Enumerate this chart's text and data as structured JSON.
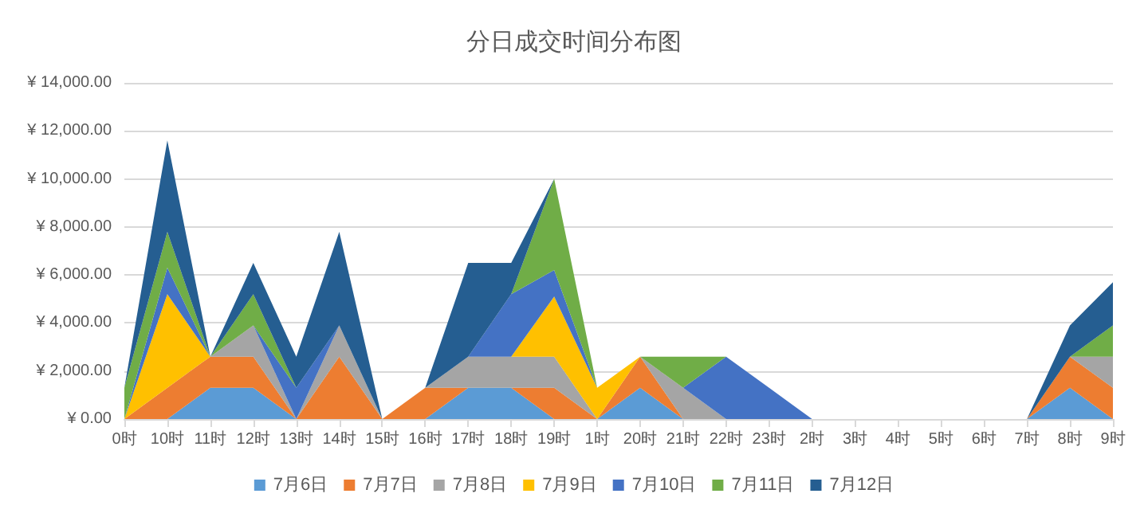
{
  "chart_data": {
    "type": "area",
    "title": "分日成交时间分布图",
    "stacked": true,
    "grid": "y",
    "legend": "bottom",
    "marker": "none",
    "categories": [
      "0时",
      "10时",
      "11时",
      "12时",
      "13时",
      "14时",
      "15时",
      "16时",
      "17时",
      "18时",
      "19时",
      "1时",
      "20时",
      "21时",
      "22时",
      "23时",
      "2时",
      "3时",
      "4时",
      "5时",
      "6时",
      "7时",
      "8时",
      "9时"
    ],
    "ylim": [
      0,
      14000
    ],
    "yticks": [
      {
        "value": 0,
        "label": "¥ 0.00"
      },
      {
        "value": 2000,
        "label": "¥ 2,000.00"
      },
      {
        "value": 4000,
        "label": "¥ 4,000.00"
      },
      {
        "value": 6000,
        "label": "¥ 6,000.00"
      },
      {
        "value": 8000,
        "label": "¥ 8,000.00"
      },
      {
        "value": 10000,
        "label": "¥ 10,000.00"
      },
      {
        "value": 12000,
        "label": "¥ 12,000.00"
      },
      {
        "value": 14000,
        "label": "¥ 14,000.00"
      }
    ],
    "series": [
      {
        "name": "7月6日",
        "color": "#5b9bd5",
        "values": [
          0,
          0,
          1300,
          1300,
          0,
          0,
          0,
          0,
          1300,
          1300,
          0,
          0,
          1300,
          0,
          0,
          0,
          0,
          0,
          0,
          0,
          0,
          0,
          1300,
          0
        ]
      },
      {
        "name": "7月7日",
        "color": "#ed7d31",
        "values": [
          0,
          1300,
          1300,
          1300,
          0,
          2600,
          0,
          1300,
          0,
          0,
          1300,
          0,
          1300,
          0,
          0,
          0,
          0,
          0,
          0,
          0,
          0,
          0,
          1300,
          1300
        ]
      },
      {
        "name": "7月8日",
        "color": "#a5a5a5",
        "values": [
          0,
          0,
          0,
          1300,
          0,
          1300,
          0,
          0,
          1300,
          1300,
          1300,
          0,
          0,
          1300,
          0,
          0,
          0,
          0,
          0,
          0,
          0,
          0,
          0,
          1300
        ]
      },
      {
        "name": "7月9日",
        "color": "#ffc000",
        "values": [
          0,
          3900,
          0,
          0,
          0,
          0,
          0,
          0,
          0,
          0,
          2500,
          1300,
          0,
          0,
          0,
          0,
          0,
          0,
          0,
          0,
          0,
          0,
          0,
          0
        ]
      },
      {
        "name": "7月10日",
        "color": "#4472c4",
        "values": [
          0,
          1100,
          0,
          0,
          1300,
          0,
          0,
          0,
          0,
          2600,
          1100,
          0,
          0,
          0,
          2600,
          1300,
          0,
          0,
          0,
          0,
          0,
          0,
          0,
          0
        ]
      },
      {
        "name": "7月11日",
        "color": "#70ad47",
        "values": [
          1300,
          1500,
          0,
          1300,
          0,
          0,
          0,
          0,
          0,
          0,
          3800,
          0,
          0,
          1300,
          0,
          0,
          0,
          0,
          0,
          0,
          0,
          0,
          0,
          1300
        ]
      },
      {
        "name": "7月12日",
        "color": "#255e91",
        "values": [
          0,
          3800,
          0,
          1300,
          1300,
          3900,
          0,
          0,
          3900,
          1300,
          0,
          0,
          0,
          0,
          0,
          0,
          0,
          0,
          0,
          0,
          0,
          0,
          1300,
          1800
        ]
      }
    ]
  }
}
